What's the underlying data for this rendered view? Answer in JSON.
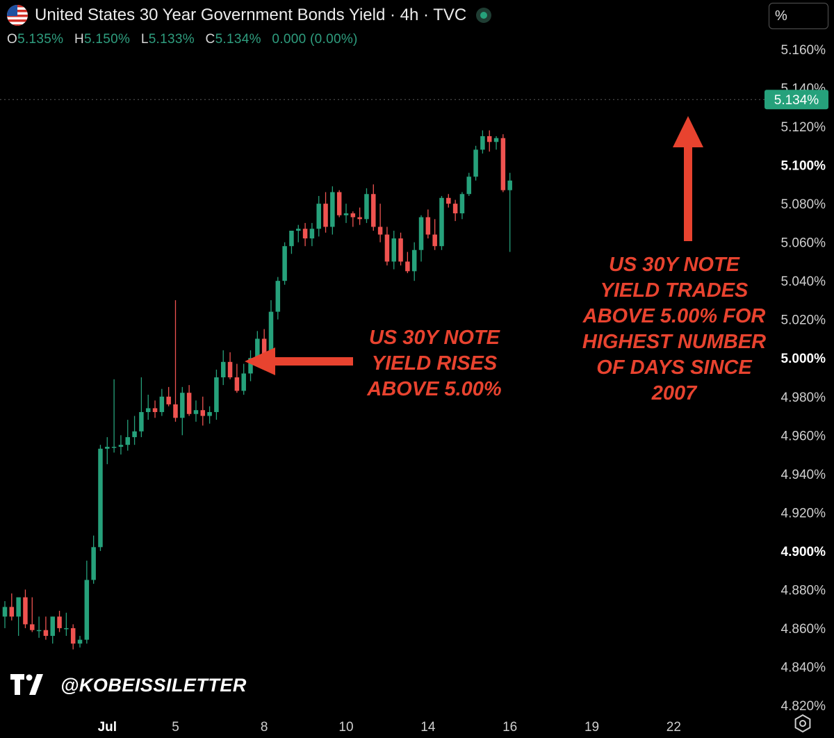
{
  "header": {
    "title": "United States 30 Year Government Bonds Yield · 4h · TVC",
    "unit_button": "%",
    "ohlc": {
      "o_label": "O",
      "o_value": "5.135%",
      "h_label": "H",
      "h_value": "5.150%",
      "l_label": "L",
      "l_value": "5.133%",
      "c_label": "C",
      "c_value": "5.134%",
      "change": "0.000 (0.00%)"
    }
  },
  "annotations": {
    "left": "US 30Y NOTE\nYIELD RISES\nABOVE 5.00%",
    "right": "US 30Y NOTE\nYIELD TRADES\nABOVE 5.00% FOR\nHIGHEST NUMBER\nOF DAYS SINCE\n2007"
  },
  "watermark": {
    "text": "@KOBEISSILETTER"
  },
  "colors": {
    "up": "#26a17b",
    "down": "#ef5350",
    "annotation": "#e8432f",
    "price_tag": "#26a17b"
  },
  "icons": [
    "us-flag-icon",
    "status-dot-icon",
    "tradingview-logo-icon",
    "settings-icon",
    "arrow-left-icon",
    "arrow-up-icon"
  ],
  "chart_data": {
    "type": "candlestick",
    "title": "United States 30 Year Government Bonds Yield · 4h · TVC",
    "interval": "4h",
    "y_axis": {
      "ticks": [
        "5.160%",
        "5.140%",
        "5.120%",
        "5.100%",
        "5.080%",
        "5.060%",
        "5.040%",
        "5.020%",
        "5.000%",
        "4.980%",
        "4.960%",
        "4.940%",
        "4.920%",
        "4.900%",
        "4.880%",
        "4.860%",
        "4.840%",
        "4.820%"
      ],
      "tick_values": [
        5.16,
        5.14,
        5.12,
        5.1,
        5.08,
        5.06,
        5.04,
        5.02,
        5.0,
        4.98,
        4.96,
        4.94,
        4.92,
        4.9,
        4.88,
        4.86,
        4.84,
        4.82
      ],
      "bold_ticks": [
        "5.100%",
        "5.000%",
        "4.900%"
      ],
      "range": [
        4.82,
        5.16
      ],
      "position": "right"
    },
    "x_axis": {
      "ticks": [
        "Jul",
        "5",
        "8",
        "10",
        "14",
        "16",
        "19",
        "22"
      ],
      "tick_index": [
        15,
        25,
        38,
        50,
        62,
        74,
        86,
        98
      ],
      "bold_ticks": [
        "Jul"
      ]
    },
    "last_price": 5.134,
    "last_price_label": "5.134%",
    "grid": false,
    "candles": [
      {
        "o": 4.866,
        "h": 4.874,
        "l": 4.86,
        "c": 4.871
      },
      {
        "o": 4.871,
        "h": 4.878,
        "l": 4.864,
        "c": 4.866
      },
      {
        "o": 4.866,
        "h": 4.876,
        "l": 4.856,
        "c": 4.876
      },
      {
        "o": 4.876,
        "h": 4.88,
        "l": 4.86,
        "c": 4.862
      },
      {
        "o": 4.862,
        "h": 4.876,
        "l": 4.858,
        "c": 4.859
      },
      {
        "o": 4.859,
        "h": 4.866,
        "l": 4.855,
        "c": 4.859
      },
      {
        "o": 4.859,
        "h": 4.866,
        "l": 4.854,
        "c": 4.856
      },
      {
        "o": 4.856,
        "h": 4.866,
        "l": 4.852,
        "c": 4.866
      },
      {
        "o": 4.866,
        "h": 4.869,
        "l": 4.858,
        "c": 4.86
      },
      {
        "o": 4.86,
        "h": 4.868,
        "l": 4.856,
        "c": 4.86
      },
      {
        "o": 4.86,
        "h": 4.862,
        "l": 4.849,
        "c": 4.852
      },
      {
        "o": 4.852,
        "h": 4.856,
        "l": 4.85,
        "c": 4.854
      },
      {
        "o": 4.854,
        "h": 4.895,
        "l": 4.852,
        "c": 4.885
      },
      {
        "o": 4.885,
        "h": 4.908,
        "l": 4.883,
        "c": 4.902
      },
      {
        "o": 4.902,
        "h": 4.955,
        "l": 4.9,
        "c": 4.953
      },
      {
        "o": 4.953,
        "h": 4.959,
        "l": 4.945,
        "c": 4.954
      },
      {
        "o": 4.954,
        "h": 4.989,
        "l": 4.951,
        "c": 4.954
      },
      {
        "o": 4.954,
        "h": 4.96,
        "l": 4.95,
        "c": 4.955
      },
      {
        "o": 4.955,
        "h": 4.968,
        "l": 4.952,
        "c": 4.959
      },
      {
        "o": 4.959,
        "h": 4.97,
        "l": 4.955,
        "c": 4.962
      },
      {
        "o": 4.962,
        "h": 4.99,
        "l": 4.959,
        "c": 4.972
      },
      {
        "o": 4.972,
        "h": 4.981,
        "l": 4.968,
        "c": 4.974
      },
      {
        "o": 4.974,
        "h": 4.978,
        "l": 4.969,
        "c": 4.972
      },
      {
        "o": 4.972,
        "h": 4.984,
        "l": 4.97,
        "c": 4.98
      },
      {
        "o": 4.98,
        "h": 4.985,
        "l": 4.975,
        "c": 4.976
      },
      {
        "o": 4.976,
        "h": 5.03,
        "l": 4.967,
        "c": 4.969
      },
      {
        "o": 4.969,
        "h": 4.985,
        "l": 4.96,
        "c": 4.982
      },
      {
        "o": 4.982,
        "h": 4.986,
        "l": 4.97,
        "c": 4.971
      },
      {
        "o": 4.971,
        "h": 4.978,
        "l": 4.967,
        "c": 4.973
      },
      {
        "o": 4.973,
        "h": 4.98,
        "l": 4.965,
        "c": 4.97
      },
      {
        "o": 4.97,
        "h": 4.975,
        "l": 4.966,
        "c": 4.972
      },
      {
        "o": 4.972,
        "h": 4.994,
        "l": 4.968,
        "c": 4.99
      },
      {
        "o": 4.99,
        "h": 5.004,
        "l": 4.986,
        "c": 4.998
      },
      {
        "o": 4.998,
        "h": 5.003,
        "l": 4.989,
        "c": 4.99
      },
      {
        "o": 4.99,
        "h": 4.997,
        "l": 4.982,
        "c": 4.983
      },
      {
        "o": 4.983,
        "h": 4.997,
        "l": 4.981,
        "c": 4.992
      },
      {
        "o": 4.992,
        "h": 5.004,
        "l": 4.988,
        "c": 5.0
      },
      {
        "o": 5.0,
        "h": 5.014,
        "l": 4.998,
        "c": 5.01
      },
      {
        "o": 5.01,
        "h": 5.015,
        "l": 4.998,
        "c": 5.0
      },
      {
        "o": 5.0,
        "h": 5.03,
        "l": 4.998,
        "c": 5.024
      },
      {
        "o": 5.024,
        "h": 5.042,
        "l": 5.02,
        "c": 5.04
      },
      {
        "o": 5.04,
        "h": 5.06,
        "l": 5.038,
        "c": 5.058
      },
      {
        "o": 5.058,
        "h": 5.066,
        "l": 5.054,
        "c": 5.066
      },
      {
        "o": 5.066,
        "h": 5.069,
        "l": 5.06,
        "c": 5.067
      },
      {
        "o": 5.067,
        "h": 5.07,
        "l": 5.058,
        "c": 5.062
      },
      {
        "o": 5.062,
        "h": 5.07,
        "l": 5.058,
        "c": 5.067
      },
      {
        "o": 5.067,
        "h": 5.084,
        "l": 5.063,
        "c": 5.08
      },
      {
        "o": 5.08,
        "h": 5.086,
        "l": 5.065,
        "c": 5.068
      },
      {
        "o": 5.068,
        "h": 5.089,
        "l": 5.064,
        "c": 5.086
      },
      {
        "o": 5.086,
        "h": 5.087,
        "l": 5.073,
        "c": 5.074
      },
      {
        "o": 5.074,
        "h": 5.08,
        "l": 5.07,
        "c": 5.075
      },
      {
        "o": 5.075,
        "h": 5.076,
        "l": 5.068,
        "c": 5.073
      },
      {
        "o": 5.073,
        "h": 5.078,
        "l": 5.069,
        "c": 5.072
      },
      {
        "o": 5.072,
        "h": 5.088,
        "l": 5.07,
        "c": 5.085
      },
      {
        "o": 5.085,
        "h": 5.09,
        "l": 5.066,
        "c": 5.068
      },
      {
        "o": 5.068,
        "h": 5.08,
        "l": 5.06,
        "c": 5.064
      },
      {
        "o": 5.064,
        "h": 5.068,
        "l": 5.048,
        "c": 5.05
      },
      {
        "o": 5.05,
        "h": 5.066,
        "l": 5.046,
        "c": 5.062
      },
      {
        "o": 5.062,
        "h": 5.065,
        "l": 5.048,
        "c": 5.05
      },
      {
        "o": 5.05,
        "h": 5.055,
        "l": 5.044,
        "c": 5.045
      },
      {
        "o": 5.045,
        "h": 5.06,
        "l": 5.04,
        "c": 5.056
      },
      {
        "o": 5.056,
        "h": 5.074,
        "l": 5.05,
        "c": 5.073
      },
      {
        "o": 5.073,
        "h": 5.077,
        "l": 5.062,
        "c": 5.064
      },
      {
        "o": 5.064,
        "h": 5.072,
        "l": 5.056,
        "c": 5.058
      },
      {
        "o": 5.058,
        "h": 5.084,
        "l": 5.056,
        "c": 5.083
      },
      {
        "o": 5.083,
        "h": 5.085,
        "l": 5.078,
        "c": 5.08
      },
      {
        "o": 5.08,
        "h": 5.082,
        "l": 5.071,
        "c": 5.075
      },
      {
        "o": 5.075,
        "h": 5.086,
        "l": 5.072,
        "c": 5.085
      },
      {
        "o": 5.085,
        "h": 5.096,
        "l": 5.084,
        "c": 5.094
      },
      {
        "o": 5.094,
        "h": 5.11,
        "l": 5.092,
        "c": 5.108
      },
      {
        "o": 5.108,
        "h": 5.118,
        "l": 5.106,
        "c": 5.115
      },
      {
        "o": 5.115,
        "h": 5.118,
        "l": 5.107,
        "c": 5.112
      },
      {
        "o": 5.112,
        "h": 5.115,
        "l": 5.108,
        "c": 5.114
      },
      {
        "o": 5.114,
        "h": 5.116,
        "l": 5.086,
        "c": 5.087
      },
      {
        "o": 5.087,
        "h": 5.096,
        "l": 5.055,
        "c": 5.092
      }
    ]
  }
}
